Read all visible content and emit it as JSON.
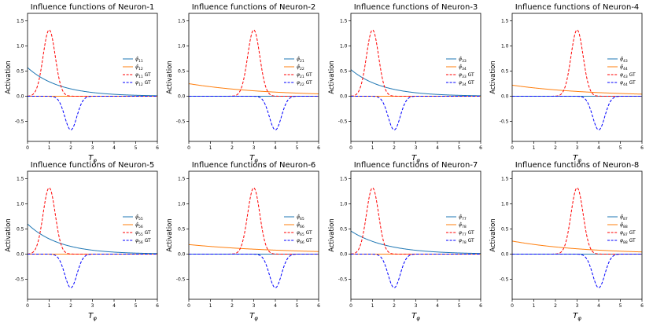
{
  "figure": {
    "layout": "2 rows x 4 columns"
  },
  "series_colors": {
    "estimate_fast": "#1f77b4",
    "estimate_slow": "#ff7f0e",
    "gt_positive": "#ff0000",
    "gt_negative": "#0000ff",
    "estimate_teal": "#1b7f72"
  },
  "chart_data": [
    {
      "type": "line",
      "title": "Influence functions of Neuron-1",
      "xlabel": "T_φ",
      "ylabel": "Activation",
      "xlim": [
        0,
        6
      ],
      "ylim": [
        -0.9,
        1.65
      ],
      "xticks": [
        0,
        1,
        2,
        3,
        4,
        5,
        6
      ],
      "yticks": [
        -0.5,
        0.0,
        0.5,
        1.0,
        1.5
      ],
      "legend_position": "right",
      "series": [
        {
          "name": "φ̂11",
          "kind": "exp",
          "a": 0.57,
          "k": 0.68,
          "color": "#1f77b4",
          "dash": "solid"
        },
        {
          "name": "φ̂12",
          "kind": "flat",
          "a": 0.0,
          "color": "#ff7f0e",
          "dash": "solid"
        },
        {
          "name": "φ11 GT",
          "kind": "gauss",
          "a": 1.32,
          "mu": 1,
          "sigma": 0.28,
          "color": "#ff0000",
          "dash": "dashed"
        },
        {
          "name": "φ12 GT",
          "kind": "gauss",
          "a": -0.67,
          "mu": 2,
          "sigma": 0.28,
          "color": "#0000ff",
          "dash": "dashed"
        }
      ]
    },
    {
      "type": "line",
      "title": "Influence functions of Neuron-2",
      "xlabel": "T_φ",
      "ylabel": "Activation",
      "xlim": [
        0,
        6
      ],
      "ylim": [
        -0.9,
        1.65
      ],
      "xticks": [
        0,
        1,
        2,
        3,
        4,
        5,
        6
      ],
      "yticks": [
        -0.5,
        0.0,
        0.5,
        1.0,
        1.5
      ],
      "legend_position": "right",
      "series": [
        {
          "name": "φ̂21",
          "kind": "flat",
          "a": 0.0,
          "color": "#1f77b4",
          "dash": "solid"
        },
        {
          "name": "φ̂22",
          "kind": "exp",
          "a": 0.25,
          "k": 0.28,
          "color": "#ff7f0e",
          "dash": "solid"
        },
        {
          "name": "φ21 GT",
          "kind": "gauss",
          "a": 1.32,
          "mu": 3,
          "sigma": 0.28,
          "color": "#ff0000",
          "dash": "dashed"
        },
        {
          "name": "φ22 GT",
          "kind": "gauss",
          "a": -0.67,
          "mu": 4,
          "sigma": 0.28,
          "color": "#0000ff",
          "dash": "dashed"
        }
      ]
    },
    {
      "type": "line",
      "title": "Influence functions of Neuron-3",
      "xlabel": "T_φ",
      "ylabel": "Activation",
      "xlim": [
        0,
        6
      ],
      "ylim": [
        -0.9,
        1.65
      ],
      "xticks": [
        0,
        1,
        2,
        3,
        4,
        5,
        6
      ],
      "yticks": [
        -0.5,
        0.0,
        0.5,
        1.0,
        1.5
      ],
      "legend_position": "right",
      "series": [
        {
          "name": "φ̂33",
          "kind": "exp",
          "a": 0.53,
          "k": 0.68,
          "color": "#1f77b4",
          "dash": "solid"
        },
        {
          "name": "φ̂34",
          "kind": "flat",
          "a": 0.0,
          "color": "#ff7f0e",
          "dash": "solid"
        },
        {
          "name": "φ33 GT",
          "kind": "gauss",
          "a": 1.32,
          "mu": 1,
          "sigma": 0.28,
          "color": "#ff0000",
          "dash": "dashed"
        },
        {
          "name": "φ34 GT",
          "kind": "gauss",
          "a": -0.67,
          "mu": 2,
          "sigma": 0.28,
          "color": "#0000ff",
          "dash": "dashed"
        }
      ]
    },
    {
      "type": "line",
      "title": "Influence functions of Neuron-4",
      "xlabel": "T_φ",
      "ylabel": "Activation",
      "xlim": [
        0,
        6
      ],
      "ylim": [
        -0.9,
        1.65
      ],
      "xticks": [
        0,
        1,
        2,
        3,
        4,
        5,
        6
      ],
      "yticks": [
        -0.5,
        0.0,
        0.5,
        1.0,
        1.5
      ],
      "legend_position": "right",
      "series": [
        {
          "name": "φ̂43",
          "kind": "flat",
          "a": 0.0,
          "color": "#1f77b4",
          "dash": "solid"
        },
        {
          "name": "φ̂44",
          "kind": "exp",
          "a": 0.22,
          "k": 0.28,
          "color": "#ff7f0e",
          "dash": "solid"
        },
        {
          "name": "φ43 GT",
          "kind": "gauss",
          "a": 1.32,
          "mu": 3,
          "sigma": 0.28,
          "color": "#ff0000",
          "dash": "dashed"
        },
        {
          "name": "φ44 GT",
          "kind": "gauss",
          "a": -0.67,
          "mu": 4,
          "sigma": 0.28,
          "color": "#0000ff",
          "dash": "dashed"
        }
      ]
    },
    {
      "type": "line",
      "title": "Influence functions of Neuron-5",
      "xlabel": "T_φ",
      "ylabel": "Activation",
      "xlim": [
        0,
        6
      ],
      "ylim": [
        -0.9,
        1.65
      ],
      "xticks": [
        0,
        1,
        2,
        3,
        4,
        5,
        6
      ],
      "yticks": [
        -0.5,
        0.0,
        0.5,
        1.0,
        1.5
      ],
      "legend_position": "right",
      "series": [
        {
          "name": "φ̂55",
          "kind": "exp",
          "a": 0.6,
          "k": 0.68,
          "color": "#1f77b4",
          "dash": "solid"
        },
        {
          "name": "φ̂56",
          "kind": "flat",
          "a": 0.0,
          "color": "#ff7f0e",
          "dash": "solid"
        },
        {
          "name": "φ55 GT",
          "kind": "gauss",
          "a": 1.32,
          "mu": 1,
          "sigma": 0.28,
          "color": "#ff0000",
          "dash": "dashed"
        },
        {
          "name": "φ56 GT",
          "kind": "gauss",
          "a": -0.67,
          "mu": 2,
          "sigma": 0.28,
          "color": "#0000ff",
          "dash": "dashed"
        }
      ]
    },
    {
      "type": "line",
      "title": "Influence functions of Neuron-6",
      "xlabel": "T_φ",
      "ylabel": "Activation",
      "xlim": [
        0,
        6
      ],
      "ylim": [
        -0.9,
        1.65
      ],
      "xticks": [
        0,
        1,
        2,
        3,
        4,
        5,
        6
      ],
      "yticks": [
        -0.5,
        0.0,
        0.5,
        1.0,
        1.5
      ],
      "legend_position": "right",
      "series": [
        {
          "name": "φ̂65",
          "kind": "flat",
          "a": 0.0,
          "color": "#1f77b4",
          "dash": "solid"
        },
        {
          "name": "φ̂66",
          "kind": "exp",
          "a": 0.19,
          "k": 0.22,
          "color": "#ff7f0e",
          "dash": "solid"
        },
        {
          "name": "φ65 GT",
          "kind": "gauss",
          "a": 1.32,
          "mu": 3,
          "sigma": 0.28,
          "color": "#ff0000",
          "dash": "dashed"
        },
        {
          "name": "φ66 GT",
          "kind": "gauss",
          "a": -0.67,
          "mu": 4,
          "sigma": 0.28,
          "color": "#0000ff",
          "dash": "dashed"
        }
      ]
    },
    {
      "type": "line",
      "title": "Influence functions of Neuron-7",
      "xlabel": "T_φ",
      "ylabel": "Activation",
      "xlim": [
        0,
        6
      ],
      "ylim": [
        -0.9,
        1.65
      ],
      "xticks": [
        0,
        1,
        2,
        3,
        4,
        5,
        6
      ],
      "yticks": [
        -0.5,
        0.0,
        0.5,
        1.0,
        1.5
      ],
      "legend_position": "right",
      "series": [
        {
          "name": "φ̂77",
          "kind": "exp",
          "a": 0.46,
          "k": 0.6,
          "color": "#1f77b4",
          "dash": "solid"
        },
        {
          "name": "φ̂78",
          "kind": "flat",
          "a": 0.0,
          "color": "#ff7f0e",
          "dash": "solid"
        },
        {
          "name": "φ77 GT",
          "kind": "gauss",
          "a": 1.32,
          "mu": 1,
          "sigma": 0.28,
          "color": "#ff0000",
          "dash": "dashed"
        },
        {
          "name": "φ78 GT",
          "kind": "gauss",
          "a": -0.67,
          "mu": 2,
          "sigma": 0.28,
          "color": "#0000ff",
          "dash": "dashed"
        }
      ]
    },
    {
      "type": "line",
      "title": "Influence functions of Neuron-8",
      "xlabel": "T_φ",
      "ylabel": "Activation",
      "xlim": [
        0,
        6
      ],
      "ylim": [
        -0.9,
        1.65
      ],
      "xticks": [
        0,
        1,
        2,
        3,
        4,
        5,
        6
      ],
      "yticks": [
        -0.5,
        0.0,
        0.5,
        1.0,
        1.5
      ],
      "legend_position": "right",
      "series": [
        {
          "name": "φ̂87",
          "kind": "flat",
          "a": 0.0,
          "color": "#1f77b4",
          "dash": "solid"
        },
        {
          "name": "φ̂88",
          "kind": "exp",
          "a": 0.26,
          "k": 0.3,
          "color": "#ff7f0e",
          "dash": "solid"
        },
        {
          "name": "φ87 GT",
          "kind": "gauss",
          "a": 1.32,
          "mu": 3,
          "sigma": 0.28,
          "color": "#ff0000",
          "dash": "dashed"
        },
        {
          "name": "φ88 GT",
          "kind": "gauss",
          "a": -0.67,
          "mu": 4,
          "sigma": 0.28,
          "color": "#0000ff",
          "dash": "dashed"
        }
      ]
    }
  ]
}
